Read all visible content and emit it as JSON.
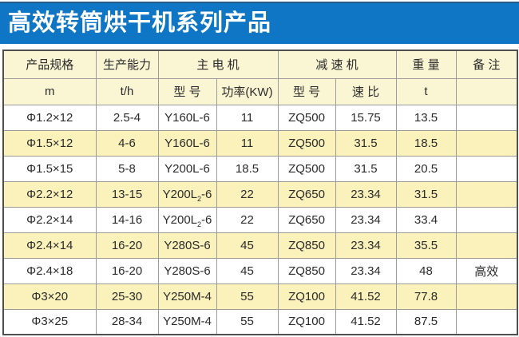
{
  "title": {
    "text": "高效转筒烘干机系列产品",
    "bg_color": "#0e76c4",
    "text_color": "#ffffff"
  },
  "table": {
    "colors": {
      "header_bg": "#faf5d3",
      "alt_row_bg": "#fbf2bb",
      "row_bg": "#ffffff",
      "outer_border": "#4f4f4f",
      "inner_border": "#9c9c9c"
    },
    "header_row1": [
      {
        "label": "产品规格",
        "colspan": 1
      },
      {
        "label": "生产能力",
        "colspan": 1
      },
      {
        "label": "主  电  机",
        "colspan": 2
      },
      {
        "label": "减  速  机",
        "colspan": 2
      },
      {
        "label": "重 量",
        "colspan": 1
      },
      {
        "label": "备 注",
        "colspan": 1
      }
    ],
    "header_row2": [
      "m",
      "t/h",
      "型 号",
      "功率(KW)",
      "型 号",
      "速 比",
      "t",
      ""
    ],
    "rows": [
      [
        "Φ1.2×12",
        "2.5-4",
        "Y160L-6",
        "11",
        "ZQ500",
        "15.75",
        "13.5",
        ""
      ],
      [
        "Φ1.5×12",
        "4-6",
        "Y160L-6",
        "11",
        "ZQ500",
        "31.5",
        "18.5",
        ""
      ],
      [
        "Φ1.5×15",
        "5-8",
        "Y200L-6",
        "18.5",
        "ZQ500",
        "31.5",
        "20.5",
        ""
      ],
      [
        "Φ2.2×12",
        "13-15",
        "Y200L_2-6",
        "22",
        "ZQ650",
        "23.34",
        "31.5",
        ""
      ],
      [
        "Φ2.2×14",
        "14-16",
        "Y200L_2-6",
        "22",
        "ZQ650",
        "23.34",
        "33.4",
        ""
      ],
      [
        "Φ2.4×14",
        "16-20",
        "Y280S-6",
        "45",
        "ZQ850",
        "23.34",
        "35.5",
        ""
      ],
      [
        "Φ2.4×18",
        "16-20",
        "Y280S-6",
        "45",
        "ZQ850",
        "23.34",
        "48",
        "高效"
      ],
      [
        "Φ3×20",
        "25-30",
        "Y250M-4",
        "55",
        "ZQ100",
        "41.52",
        "77.8",
        ""
      ],
      [
        "Φ3×25",
        "28-34",
        "Y250M-4",
        "55",
        "ZQ100",
        "41.52",
        "87.5",
        ""
      ]
    ]
  },
  "chart_data": {
    "type": "table",
    "title": "高效转筒烘干机系列产品",
    "columns": [
      "产品规格 m",
      "生产能力 t/h",
      "主电机 型号",
      "主电机 功率(KW)",
      "减速机 型号",
      "减速机 速比",
      "重量 t",
      "备注"
    ],
    "rows": [
      [
        "Φ1.2×12",
        "2.5-4",
        "Y160L-6",
        11,
        "ZQ500",
        15.75,
        13.5,
        ""
      ],
      [
        "Φ1.5×12",
        "4-6",
        "Y160L-6",
        11,
        "ZQ500",
        31.5,
        18.5,
        ""
      ],
      [
        "Φ1.5×15",
        "5-8",
        "Y200L-6",
        18.5,
        "ZQ500",
        31.5,
        20.5,
        ""
      ],
      [
        "Φ2.2×12",
        "13-15",
        "Y200L2-6",
        22,
        "ZQ650",
        23.34,
        31.5,
        ""
      ],
      [
        "Φ2.2×14",
        "14-16",
        "Y200L2-6",
        22,
        "ZQ650",
        23.34,
        33.4,
        ""
      ],
      [
        "Φ2.4×14",
        "16-20",
        "Y280S-6",
        45,
        "ZQ850",
        23.34,
        35.5,
        ""
      ],
      [
        "Φ2.4×18",
        "16-20",
        "Y280S-6",
        45,
        "ZQ850",
        23.34,
        48,
        "高效"
      ],
      [
        "Φ3×20",
        "25-30",
        "Y250M-4",
        55,
        "ZQ100",
        41.52,
        77.8,
        ""
      ],
      [
        "Φ3×25",
        "28-34",
        "Y250M-4",
        55,
        "ZQ100",
        41.52,
        87.5,
        ""
      ]
    ]
  }
}
